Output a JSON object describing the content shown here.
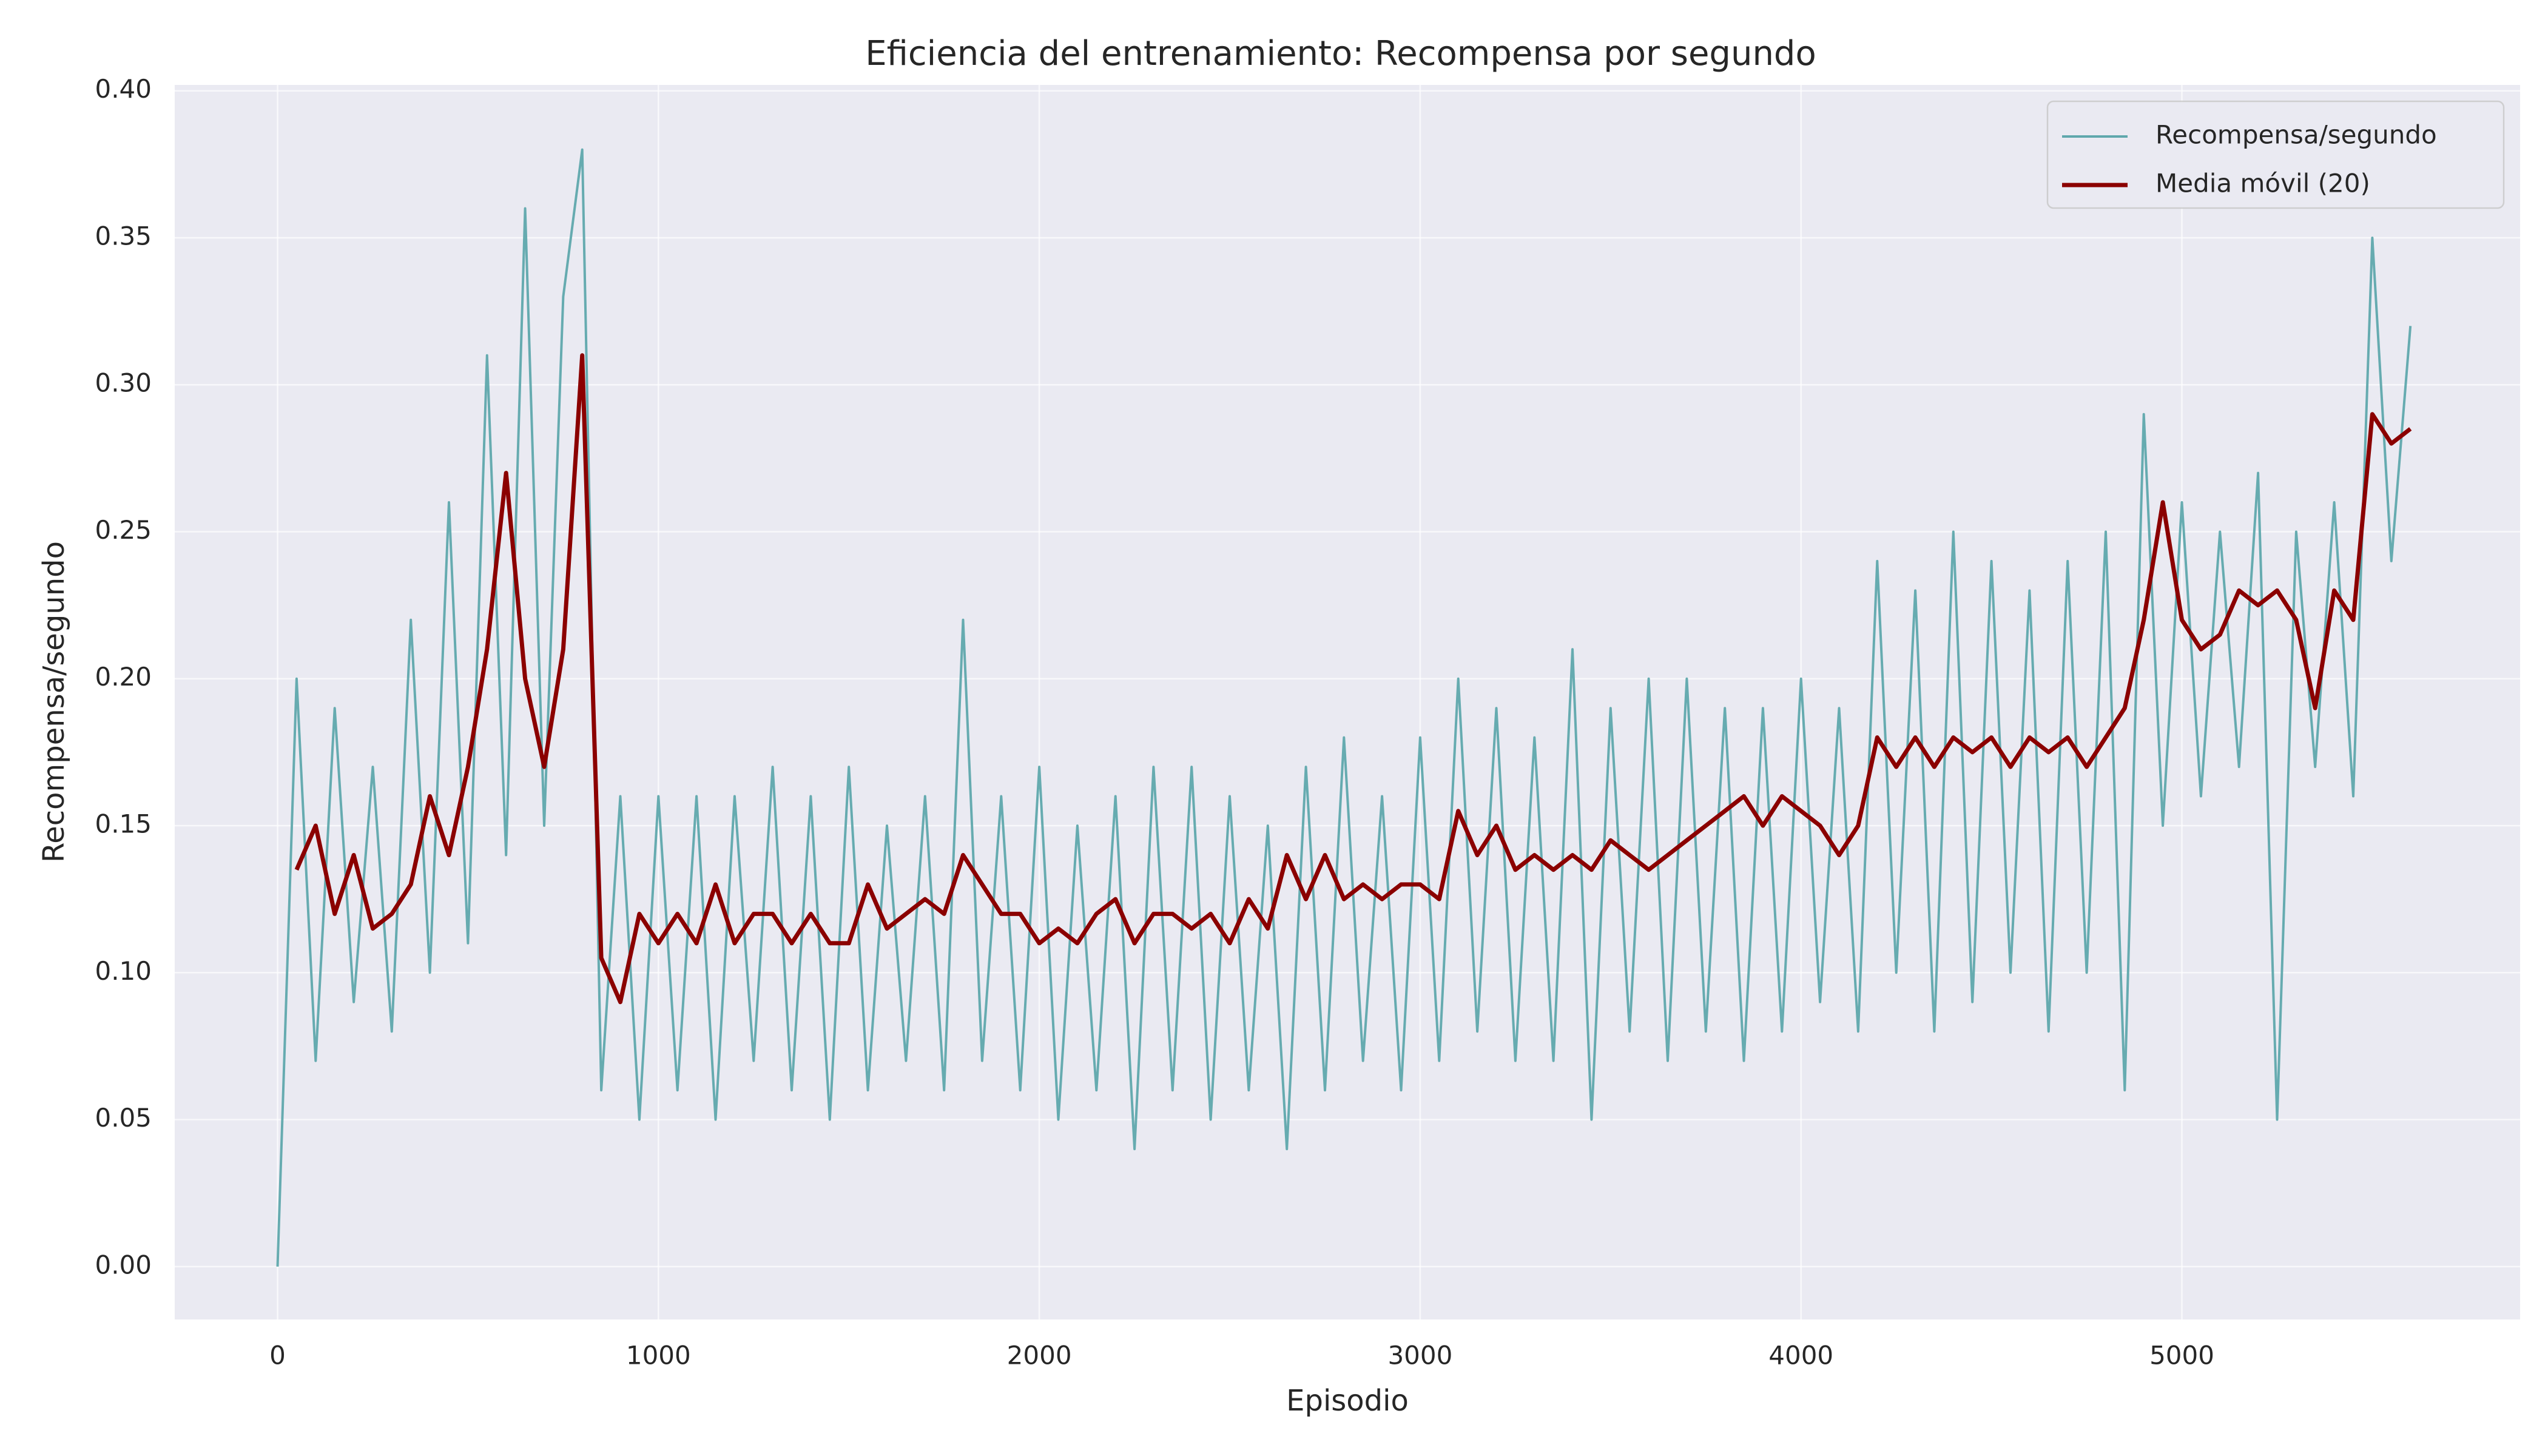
{
  "chart_data": {
    "type": "line",
    "title": "Eficiencia del entrenamiento: Recompensa por segundo",
    "xlabel": "Episodio",
    "ylabel": "Recompensa/segundo",
    "x": [
      0,
      50,
      100,
      150,
      200,
      250,
      300,
      350,
      400,
      450,
      500,
      550,
      600,
      650,
      700,
      750,
      800,
      850,
      900,
      950,
      1000,
      1050,
      1100,
      1150,
      1200,
      1250,
      1300,
      1350,
      1400,
      1450,
      1500,
      1550,
      1600,
      1650,
      1700,
      1750,
      1800,
      1850,
      1900,
      1950,
      2000,
      2050,
      2100,
      2150,
      2200,
      2250,
      2300,
      2350,
      2400,
      2450,
      2500,
      2550,
      2600,
      2650,
      2700,
      2750,
      2800,
      2850,
      2900,
      2950,
      3000,
      3050,
      3100,
      3150,
      3200,
      3250,
      3300,
      3350,
      3400,
      3450,
      3500,
      3550,
      3600,
      3650,
      3700,
      3750,
      3800,
      3850,
      3900,
      3950,
      4000,
      4050,
      4100,
      4150,
      4200,
      4250,
      4300,
      4350,
      4400,
      4450,
      4500,
      4550,
      4600,
      4650,
      4700,
      4750,
      4800,
      4850,
      4900,
      4950,
      5000,
      5050,
      5100,
      5150,
      5200,
      5250,
      5300,
      5350,
      5400,
      5450,
      5500,
      5550,
      5600
    ],
    "series": [
      {
        "name": "Recompensa/segundo",
        "color": "#5fa8ac",
        "values": [
          0.0,
          0.2,
          0.07,
          0.19,
          0.09,
          0.17,
          0.08,
          0.22,
          0.1,
          0.26,
          0.11,
          0.31,
          0.14,
          0.36,
          0.15,
          0.33,
          0.38,
          0.06,
          0.16,
          0.05,
          0.16,
          0.06,
          0.16,
          0.05,
          0.16,
          0.07,
          0.17,
          0.06,
          0.16,
          0.05,
          0.17,
          0.06,
          0.15,
          0.07,
          0.16,
          0.06,
          0.22,
          0.07,
          0.16,
          0.06,
          0.17,
          0.05,
          0.15,
          0.06,
          0.16,
          0.04,
          0.17,
          0.06,
          0.17,
          0.05,
          0.16,
          0.06,
          0.15,
          0.04,
          0.17,
          0.06,
          0.18,
          0.07,
          0.16,
          0.06,
          0.18,
          0.07,
          0.2,
          0.08,
          0.19,
          0.07,
          0.18,
          0.07,
          0.21,
          0.05,
          0.19,
          0.08,
          0.2,
          0.07,
          0.2,
          0.08,
          0.19,
          0.07,
          0.19,
          0.08,
          0.2,
          0.09,
          0.19,
          0.08,
          0.24,
          0.1,
          0.23,
          0.08,
          0.25,
          0.09,
          0.24,
          0.1,
          0.23,
          0.08,
          0.24,
          0.1,
          0.25,
          0.06,
          0.29,
          0.15,
          0.26,
          0.16,
          0.25,
          0.17,
          0.27,
          0.05,
          0.25,
          0.17,
          0.26,
          0.16,
          0.35,
          0.24,
          0.32
        ]
      },
      {
        "name": "Media móvil (20)",
        "color": "#8b0000",
        "values": [
          null,
          0.135,
          0.15,
          0.12,
          0.14,
          0.115,
          0.12,
          0.13,
          0.16,
          0.14,
          0.17,
          0.21,
          0.27,
          0.2,
          0.17,
          0.21,
          0.31,
          0.105,
          0.09,
          0.12,
          0.11,
          0.12,
          0.11,
          0.13,
          0.11,
          0.12,
          0.12,
          0.11,
          0.12,
          0.11,
          0.11,
          0.13,
          0.115,
          0.12,
          0.125,
          0.12,
          0.14,
          0.13,
          0.12,
          0.12,
          0.11,
          0.115,
          0.11,
          0.12,
          0.125,
          0.11,
          0.12,
          0.12,
          0.115,
          0.12,
          0.11,
          0.125,
          0.115,
          0.14,
          0.125,
          0.14,
          0.125,
          0.13,
          0.125,
          0.13,
          0.13,
          0.125,
          0.155,
          0.14,
          0.15,
          0.135,
          0.14,
          0.135,
          0.14,
          0.135,
          0.145,
          0.14,
          0.135,
          0.14,
          0.145,
          0.15,
          0.155,
          0.16,
          0.15,
          0.16,
          0.155,
          0.15,
          0.14,
          0.15,
          0.18,
          0.17,
          0.18,
          0.17,
          0.18,
          0.175,
          0.18,
          0.17,
          0.18,
          0.175,
          0.18,
          0.17,
          0.18,
          0.19,
          0.22,
          0.26,
          0.22,
          0.21,
          0.215,
          0.23,
          0.225,
          0.23,
          0.22,
          0.19,
          0.23,
          0.22,
          0.29,
          0.28,
          0.285
        ]
      }
    ],
    "xlim": [
      -270,
      5888
    ],
    "ylim": [
      -0.018,
      0.402
    ],
    "xticks": [
      0,
      1000,
      2000,
      3000,
      4000,
      5000
    ],
    "yticks": [
      {
        "value": 0,
        "label": "0.00"
      },
      {
        "value": 0.05,
        "label": "0.05"
      },
      {
        "value": 0.1,
        "label": "0.10"
      },
      {
        "value": 0.15,
        "label": "0.15"
      },
      {
        "value": 0.2,
        "label": "0.20"
      },
      {
        "value": 0.25,
        "label": "0.25"
      },
      {
        "value": 0.3,
        "label": "0.30"
      },
      {
        "value": 0.35,
        "label": "0.35"
      },
      {
        "value": 0.4,
        "label": "0.40"
      }
    ],
    "grid": true,
    "legend": "upper right"
  }
}
